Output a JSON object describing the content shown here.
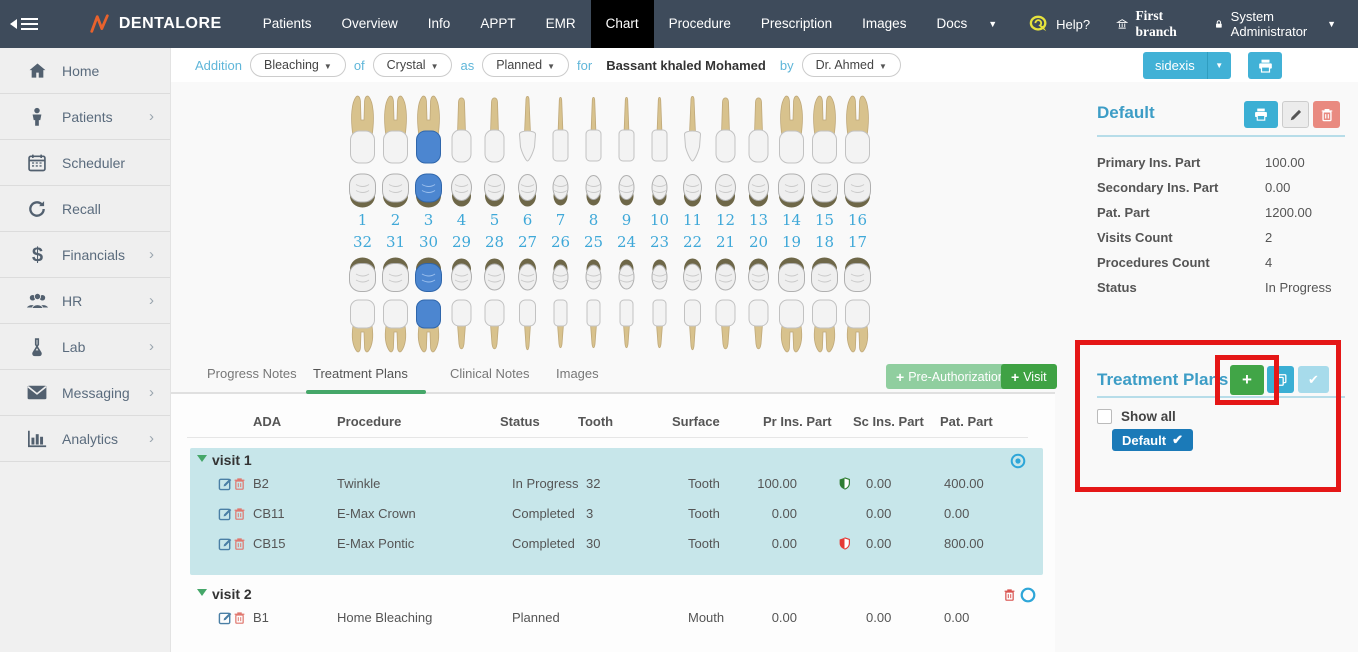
{
  "navbar": {
    "brand": "DENTALORE",
    "items": [
      "Patients",
      "Overview",
      "Info",
      "APPT",
      "EMR",
      "Chart",
      "Procedure",
      "Prescription",
      "Images",
      "Docs"
    ],
    "active_item": "Chart",
    "help_label": "Help?",
    "branch_label": "First branch",
    "user_label": "System Administrator"
  },
  "sidebar": {
    "items": [
      {
        "label": "Home",
        "icon": "home-icon",
        "chevron": false
      },
      {
        "label": "Patients",
        "icon": "patient-icon",
        "chevron": true
      },
      {
        "label": "Scheduler",
        "icon": "calendar-icon",
        "chevron": false
      },
      {
        "label": "Recall",
        "icon": "refresh-icon",
        "chevron": false
      },
      {
        "label": "Financials",
        "icon": "dollar-icon",
        "chevron": true
      },
      {
        "label": "HR",
        "icon": "people-icon",
        "chevron": true
      },
      {
        "label": "Lab",
        "icon": "flask-icon",
        "chevron": true
      },
      {
        "label": "Messaging",
        "icon": "envelope-icon",
        "chevron": true
      },
      {
        "label": "Analytics",
        "icon": "barchart-icon",
        "chevron": true
      }
    ]
  },
  "addition_bar": {
    "prefix": "Addition",
    "procedure": "Bleaching",
    "of": "of",
    "material": "Crystal",
    "as": "as",
    "status": "Planned",
    "for": "for",
    "patient": "Bassant khaled Mohamed",
    "by": "by",
    "doctor": "Dr. Ahmed"
  },
  "top_buttons": {
    "sidexis_label": "sidexis"
  },
  "dental_chart": {
    "upper_numbers": [
      "1",
      "2",
      "3",
      "4",
      "5",
      "6",
      "7",
      "8",
      "9",
      "10",
      "11",
      "12",
      "13",
      "14",
      "15",
      "16"
    ],
    "lower_numbers": [
      "32",
      "31",
      "30",
      "29",
      "28",
      "27",
      "26",
      "25",
      "24",
      "23",
      "22",
      "21",
      "20",
      "19",
      "18",
      "17"
    ],
    "highlighted_upper": [
      "3"
    ],
    "highlighted_lower": [
      "30"
    ],
    "types": [
      "molar",
      "molar",
      "molar",
      "premolar",
      "premolar",
      "canine",
      "incisor",
      "incisor",
      "incisor",
      "incisor",
      "canine",
      "premolar",
      "premolar",
      "molar",
      "molar",
      "molar"
    ],
    "highlight_color": "#4c86d0"
  },
  "tabs": {
    "items": [
      "Progress Notes",
      "Treatment Plans",
      "Clinical Notes",
      "Images"
    ],
    "active": "Treatment Plans",
    "pre_auth_label": "Pre-Authorization",
    "visit_label": "Visit"
  },
  "procedures_table": {
    "headers": [
      "ADA",
      "Procedure",
      "Status",
      "Tooth",
      "Surface",
      "Pr Ins. Part",
      "Sc Ins. Part",
      "Pat. Part"
    ],
    "visits": [
      {
        "label": "visit 1",
        "selected": true,
        "rows": [
          {
            "ada": "B2",
            "procedure": "Twinkle",
            "status": "In Progress",
            "tooth": "32",
            "surface": "Tooth",
            "pr_ins": "100.00",
            "shield": "green",
            "sc_ins": "0.00",
            "pat": "400.00"
          },
          {
            "ada": "CB11",
            "procedure": "E-Max Crown",
            "status": "Completed",
            "tooth": "3",
            "surface": "Tooth",
            "pr_ins": "0.00",
            "shield": "",
            "sc_ins": "0.00",
            "pat": "0.00"
          },
          {
            "ada": "CB15",
            "procedure": "E-Max Pontic",
            "status": "Completed",
            "tooth": "30",
            "surface": "Tooth",
            "pr_ins": "0.00",
            "shield": "red",
            "sc_ins": "0.00",
            "pat": "800.00"
          }
        ]
      },
      {
        "label": "visit 2",
        "selected": false,
        "rows": [
          {
            "ada": "B1",
            "procedure": "Home Bleaching",
            "status": "Planned",
            "tooth": "",
            "surface": "Mouth",
            "pr_ins": "0.00",
            "shield": "",
            "sc_ins": "0.00",
            "pat": "0.00"
          }
        ]
      }
    ]
  },
  "plan_panel": {
    "title": "Default",
    "stats": [
      {
        "label": "Primary Ins. Part",
        "value": "100.00"
      },
      {
        "label": "Secondary Ins. Part",
        "value": "0.00"
      },
      {
        "label": "Pat. Part",
        "value": "1200.00"
      },
      {
        "label": "Visits Count",
        "value": "2"
      },
      {
        "label": "Procedures Count",
        "value": "4"
      },
      {
        "label": "Status",
        "value": "In Progress"
      }
    ]
  },
  "treatment_plans_panel": {
    "title": "Treatment Plans",
    "show_all_label": "Show all",
    "badge_label": "Default"
  },
  "icons": {
    "caret_down": "▼",
    "chevron_right": "›",
    "check": "✔",
    "plus": "+",
    "collapse_arrow": "left-triangle"
  },
  "colors": {
    "navbar_bg": "#3e4b5b",
    "active_tab_bg": "#000000",
    "accent_blue": "#41b1d6",
    "accent_green": "#3fa244",
    "light_green": "#90ce9f",
    "teal_row_bg": "#c7e6ea",
    "badge_blue": "#1b7ab8",
    "annotation_red": "#e51717",
    "tooth_highlight": "#4c86d0",
    "link_blue": "#5fb6d9"
  }
}
